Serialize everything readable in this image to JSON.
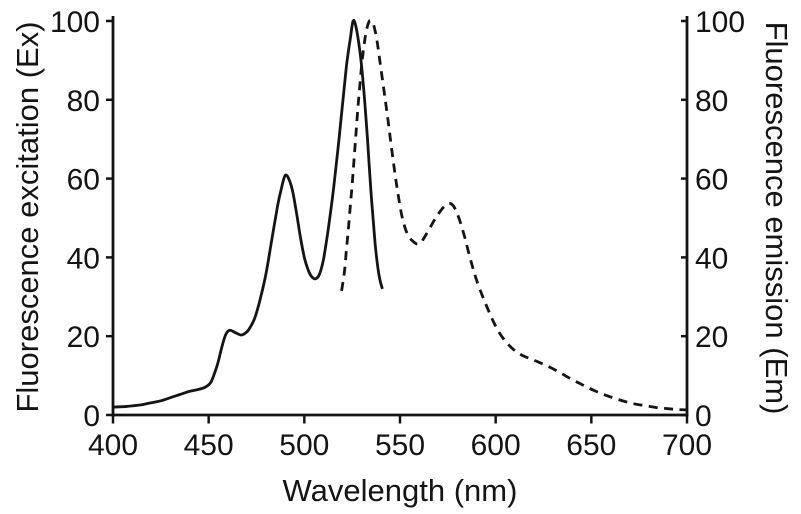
{
  "figure": {
    "background_color": "#ffffff",
    "line_color": "#141414"
  },
  "chart_data": {
    "type": "line",
    "title": "",
    "xlabel": "Wavelength (nm)",
    "ylabel_left": "Fluorescence excitation (Ex)",
    "ylabel_right": "Fluorescence emission (Em)",
    "xlim": [
      400,
      700
    ],
    "ylim_left": [
      0,
      100
    ],
    "ylim_right": [
      0,
      100
    ],
    "x_ticks": [
      400,
      450,
      500,
      550,
      600,
      650,
      700
    ],
    "y_ticks_left": [
      0,
      20,
      40,
      60,
      80,
      100
    ],
    "y_ticks_right": [
      0,
      20,
      40,
      60,
      80,
      100
    ],
    "grid": false,
    "legend": "none",
    "series": [
      {
        "name": "Fluorescence excitation (Ex)",
        "axis": "left",
        "line_style": "solid",
        "color": "#141414",
        "points": [
          [
            400,
            2
          ],
          [
            405,
            2.1
          ],
          [
            410,
            2.3
          ],
          [
            415,
            2.6
          ],
          [
            420,
            3.1
          ],
          [
            425,
            3.6
          ],
          [
            430,
            4.4
          ],
          [
            435,
            5.2
          ],
          [
            440,
            6
          ],
          [
            444,
            6.4
          ],
          [
            448,
            7
          ],
          [
            451,
            8.2
          ],
          [
            453,
            10.5
          ],
          [
            455,
            13.5
          ],
          [
            457,
            17.5
          ],
          [
            459,
            20.5
          ],
          [
            461,
            21.5
          ],
          [
            464,
            20.9
          ],
          [
            467,
            20.3
          ],
          [
            469,
            20.7
          ],
          [
            471,
            21.7
          ],
          [
            474,
            24.5
          ],
          [
            477,
            29.5
          ],
          [
            480,
            36
          ],
          [
            483,
            44.5
          ],
          [
            486,
            53
          ],
          [
            488,
            57.5
          ],
          [
            490,
            60.8
          ],
          [
            492,
            59.8
          ],
          [
            494,
            56.5
          ],
          [
            496,
            51
          ],
          [
            498,
            45
          ],
          [
            500,
            40
          ],
          [
            502,
            36.8
          ],
          [
            504,
            35
          ],
          [
            506,
            34.6
          ],
          [
            508,
            35.8
          ],
          [
            510,
            39.5
          ],
          [
            512,
            45.5
          ],
          [
            514,
            52.5
          ],
          [
            516,
            60.5
          ],
          [
            518,
            69.5
          ],
          [
            520,
            79
          ],
          [
            522,
            88.5
          ],
          [
            524,
            95.5
          ],
          [
            525.5,
            100
          ],
          [
            527,
            98.5
          ],
          [
            529,
            92.5
          ],
          [
            531,
            83
          ],
          [
            533,
            70
          ],
          [
            535,
            55.5
          ],
          [
            537,
            43.5
          ],
          [
            539,
            35.5
          ],
          [
            540.8,
            32
          ]
        ]
      },
      {
        "name": "Fluorescence emission (Em)",
        "axis": "right",
        "line_style": "dashed",
        "color": "#141414",
        "points": [
          [
            519.5,
            31.5
          ],
          [
            521,
            36.5
          ],
          [
            522,
            42
          ],
          [
            523,
            47
          ],
          [
            524,
            53
          ],
          [
            525,
            58.5
          ],
          [
            526,
            65
          ],
          [
            527,
            71.5
          ],
          [
            528,
            78
          ],
          [
            529,
            83.5
          ],
          [
            530,
            89
          ],
          [
            531,
            93
          ],
          [
            532,
            96.5
          ],
          [
            533,
            98.7
          ],
          [
            534,
            100
          ],
          [
            535,
            100
          ],
          [
            536,
            99.3
          ],
          [
            537,
            97.5
          ],
          [
            538,
            95
          ],
          [
            539,
            91.5
          ],
          [
            541,
            84.5
          ],
          [
            543,
            77.5
          ],
          [
            545,
            70
          ],
          [
            547,
            62.5
          ],
          [
            549,
            56
          ],
          [
            551,
            50.5
          ],
          [
            553,
            47
          ],
          [
            555,
            45
          ],
          [
            557,
            44
          ],
          [
            559,
            43.4
          ],
          [
            561,
            43.8
          ],
          [
            563,
            45.3
          ],
          [
            566,
            47.8
          ],
          [
            569,
            50.3
          ],
          [
            572,
            52.3
          ],
          [
            574,
            53.3
          ],
          [
            576,
            53.7
          ],
          [
            578,
            53
          ],
          [
            580,
            51
          ],
          [
            582,
            48.2
          ],
          [
            584,
            44.8
          ],
          [
            586,
            41
          ],
          [
            588,
            37.5
          ],
          [
            590,
            34.3
          ],
          [
            593,
            30.3
          ],
          [
            596,
            26.8
          ],
          [
            599,
            23.5
          ],
          [
            602,
            20.8
          ],
          [
            605,
            18.8
          ],
          [
            608,
            17.2
          ],
          [
            611,
            16
          ],
          [
            614,
            15.1
          ],
          [
            617,
            14.5
          ],
          [
            620,
            13.9
          ],
          [
            624,
            13.1
          ],
          [
            628,
            12.2
          ],
          [
            632,
            11.2
          ],
          [
            636,
            10.1
          ],
          [
            640,
            9
          ],
          [
            644,
            8
          ],
          [
            648,
            7
          ],
          [
            652,
            6.1
          ],
          [
            656,
            5.3
          ],
          [
            660,
            4.6
          ],
          [
            665,
            3.8
          ],
          [
            670,
            3.1
          ],
          [
            675,
            2.6
          ],
          [
            680,
            2.2
          ],
          [
            685,
            1.8
          ],
          [
            690,
            1.6
          ],
          [
            695,
            1.4
          ],
          [
            700,
            1.3
          ]
        ]
      }
    ]
  }
}
